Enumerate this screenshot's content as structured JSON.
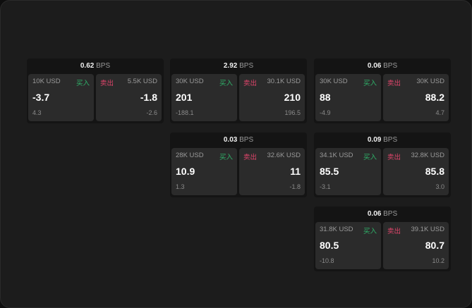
{
  "unit": "BPS",
  "buy_label": "买入",
  "sell_label": "卖出",
  "colors": {
    "buy": "#2fb36a",
    "sell": "#e0456b"
  },
  "panels": [
    {
      "spread": "0.62",
      "bid_size": "10K USD",
      "bid": "-3.7",
      "bid_change": "4.3",
      "ask_size": "5.5K USD",
      "ask": "-1.8",
      "ask_change": "-2.6"
    },
    {
      "spread": "2.92",
      "bid_size": "30K USD",
      "bid": "201",
      "bid_change": "-188.1",
      "ask_size": "30.1K USD",
      "ask": "210",
      "ask_change": "196.5"
    },
    {
      "spread": "0.06",
      "bid_size": "30K USD",
      "bid": "88",
      "bid_change": "-4.9",
      "ask_size": "30K USD",
      "ask": "88.2",
      "ask_change": "4.7"
    },
    {
      "spread": "0.03",
      "bid_size": "28K USD",
      "bid": "10.9",
      "bid_change": "1.3",
      "ask_size": "32.6K USD",
      "ask": "11",
      "ask_change": "-1.8"
    },
    {
      "spread": "0.09",
      "bid_size": "34.1K USD",
      "bid": "85.5",
      "bid_change": "-3.1",
      "ask_size": "32.8K USD",
      "ask": "85.8",
      "ask_change": "3.0"
    },
    {
      "spread": "0.06",
      "bid_size": "31.8K USD",
      "bid": "80.5",
      "bid_change": "-10.8",
      "ask_size": "39.1K USD",
      "ask": "80.7",
      "ask_change": "10.2"
    }
  ]
}
